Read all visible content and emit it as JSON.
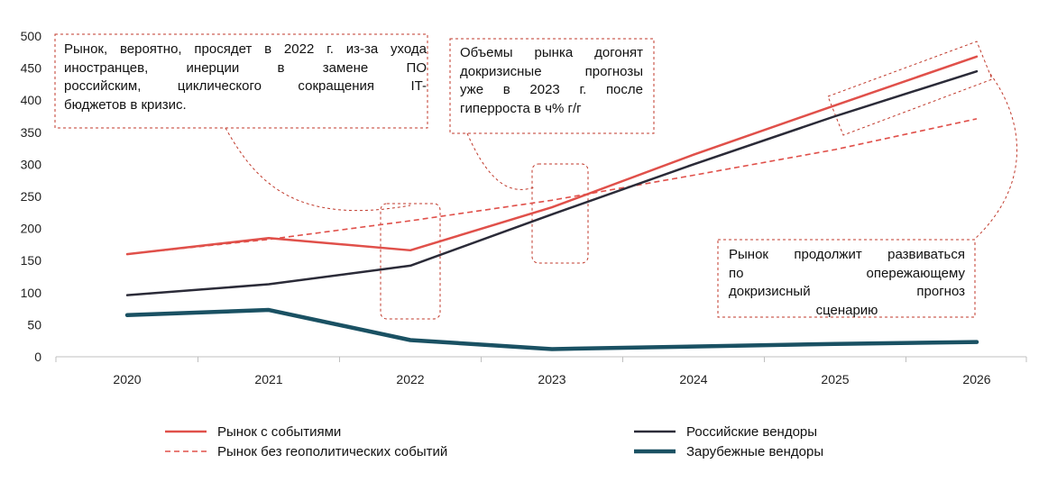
{
  "chart_data": {
    "type": "line",
    "categories": [
      "2020",
      "2021",
      "2022",
      "2023",
      "2024",
      "2025",
      "2026"
    ],
    "ylim": [
      0,
      500
    ],
    "yticks": [
      0,
      50,
      100,
      150,
      200,
      250,
      300,
      350,
      400,
      450,
      500
    ],
    "series": [
      {
        "name": "Рынок с событиями",
        "values": [
          160,
          185,
          166,
          233,
          315,
          392,
          468
        ],
        "color": "#e0504a",
        "style": "solid",
        "width": 2.5
      },
      {
        "name": "Рынок без геополитических событий",
        "values": [
          160,
          183,
          212,
          244,
          283,
          323,
          371
        ],
        "color": "#e0504a",
        "style": "dashed",
        "width": 1.6
      },
      {
        "name": "Российские вендоры",
        "values": [
          96,
          113,
          142,
          222,
          300,
          375,
          445
        ],
        "color": "#2b2b38",
        "style": "solid",
        "width": 2.5
      },
      {
        "name": "Зарубежные вендоры",
        "values": [
          65,
          73,
          26,
          12,
          16,
          20,
          23
        ],
        "color": "#1a5163",
        "style": "solid",
        "width": 4.5
      }
    ],
    "annotations": [
      {
        "id": "a1",
        "lines": [
          "Рынок, вероятно, просядет в 2022 г. из-за ухода",
          "иностранцев, инерции в замене ПО",
          "российским, циклического сокращения IT-",
          "бюджетов в кризис."
        ]
      },
      {
        "id": "a2",
        "lines": [
          "Объемы рынка догонят",
          "докризисные прогнозы",
          "уже в 2023 г. после",
          "гиперроста в ч% г/г"
        ]
      },
      {
        "id": "a3",
        "lines": [
          "Рынок продолжит развиваться",
          "по опережающему",
          "докризисный прогноз",
          "сценарию"
        ]
      }
    ],
    "grid": false,
    "legend_position": "bottom"
  }
}
